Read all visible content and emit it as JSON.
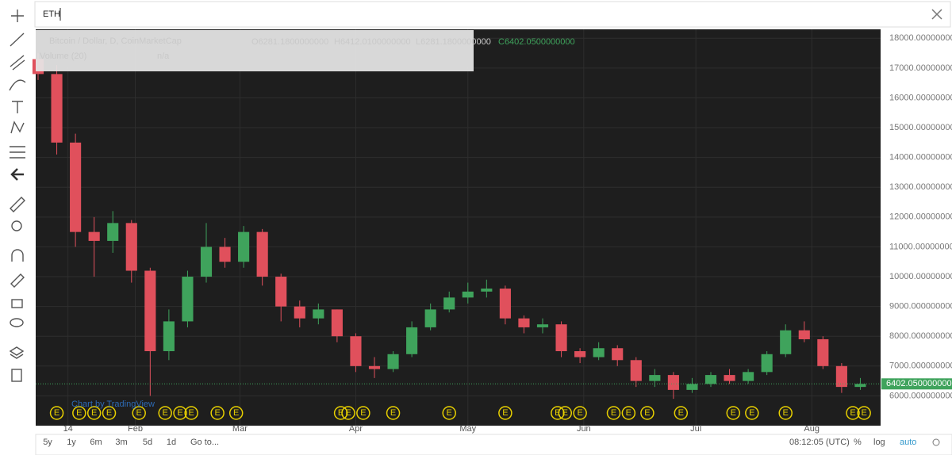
{
  "search": {
    "query": "ETH"
  },
  "header": {
    "symbol": "Bitcoin / Dollar, D, CoinMarketCap",
    "open": "O6281.1800000000",
    "high": "H6412.0100000000",
    "low": "L6281.1800000000",
    "close": "C6402.0500000000",
    "volume": "Volume (20)",
    "volume_value": "n/a"
  },
  "watermark": "Chart by TradingView",
  "earnings_marker": "E",
  "chart_data": {
    "type": "candlestick",
    "x": [
      0,
      5,
      10,
      15,
      20,
      25,
      30,
      35,
      40,
      45,
      50,
      55,
      60,
      65,
      70,
      75,
      80,
      85,
      90,
      95,
      100,
      105,
      110,
      115,
      120,
      125,
      130,
      135,
      140,
      145,
      150,
      155,
      160,
      165,
      170,
      175,
      180,
      185,
      190,
      195,
      200,
      205,
      210,
      215,
      220
    ],
    "open": [
      17300,
      16800,
      14500,
      11500,
      11200,
      11800,
      10200,
      7500,
      8500,
      10000,
      11000,
      10500,
      11500,
      10000,
      9000,
      8600,
      8900,
      8000,
      7000,
      6900,
      7400,
      8300,
      8900,
      9300,
      9500,
      9600,
      8600,
      8300,
      8400,
      7500,
      7300,
      7600,
      7200,
      6500,
      6700,
      6200,
      6400,
      6700,
      6500,
      6800,
      7400,
      8200,
      7900,
      7000,
      6300
    ],
    "high": [
      17500,
      17100,
      14800,
      12000,
      12200,
      11900,
      10300,
      8900,
      10200,
      11800,
      11300,
      11700,
      11600,
      10100,
      9200,
      9100,
      8900,
      8100,
      7300,
      7500,
      8500,
      9100,
      9500,
      9800,
      9900,
      9700,
      8700,
      8600,
      8500,
      7600,
      7800,
      7700,
      7300,
      6900,
      6800,
      6600,
      6800,
      6900,
      6900,
      7500,
      8400,
      8500,
      8000,
      7100,
      6600
    ],
    "low": [
      16600,
      14100,
      11000,
      10000,
      10800,
      9800,
      6000,
      7200,
      8300,
      9800,
      10300,
      10300,
      9700,
      8500,
      8300,
      8400,
      7800,
      6800,
      6600,
      6800,
      7300,
      8200,
      8800,
      9100,
      9300,
      8400,
      8100,
      8100,
      7300,
      7100,
      7200,
      7000,
      6300,
      6300,
      5900,
      6100,
      6300,
      6400,
      6400,
      6700,
      7300,
      7800,
      6900,
      6100,
      6200
    ],
    "close": [
      16800,
      14500,
      11500,
      11200,
      11800,
      10200,
      7500,
      8500,
      10000,
      11000,
      10500,
      11500,
      10000,
      9000,
      8600,
      8900,
      8000,
      7000,
      6900,
      7400,
      8300,
      8900,
      9300,
      9500,
      9600,
      8600,
      8300,
      8400,
      7500,
      7300,
      7600,
      7200,
      6500,
      6700,
      6200,
      6400,
      6700,
      6500,
      6800,
      7400,
      8200,
      7900,
      7000,
      6300,
      6400
    ],
    "xlim": [
      0,
      225
    ],
    "xticks": [
      {
        "value": 8,
        "label": "14"
      },
      {
        "value": 26,
        "label": "Feb"
      },
      {
        "value": 54,
        "label": "Mar"
      },
      {
        "value": 85,
        "label": "Apr"
      },
      {
        "value": 115,
        "label": "May"
      },
      {
        "value": 146,
        "label": "Jun"
      },
      {
        "value": 176,
        "label": "Jul"
      },
      {
        "value": 207,
        "label": "Aug"
      }
    ],
    "ylim": [
      5000,
      18300
    ],
    "yticks": [
      {
        "value": 6000,
        "label": "6000.0000000000"
      },
      {
        "value": 7000,
        "label": "7000.0000000000"
      },
      {
        "value": 8000,
        "label": "8000.0000000000"
      },
      {
        "value": 9000,
        "label": "9000.0000000000"
      },
      {
        "value": 10000,
        "label": "10000.0000000000"
      },
      {
        "value": 11000,
        "label": "11000.0000000000"
      },
      {
        "value": 12000,
        "label": "12000.0000000000"
      },
      {
        "value": 13000,
        "label": "13000.0000000000"
      },
      {
        "value": 14000,
        "label": "14000.0000000000"
      },
      {
        "value": 15000,
        "label": "15000.0000000000"
      },
      {
        "value": 16000,
        "label": "16000.0000000000"
      },
      {
        "value": 17000,
        "label": "17000.0000000000"
      },
      {
        "value": 18000,
        "label": "18000.0000000000"
      }
    ],
    "last_price": {
      "value": 6402.05,
      "label": "6402.0500000000"
    },
    "grid": true,
    "up_color": "#3fa35c",
    "down_color": "#e0505c"
  },
  "toolbar": {
    "ranges": [
      "5y",
      "1y",
      "6m",
      "3m",
      "5d",
      "1d"
    ],
    "goto": "Go to...",
    "clock": "08:12:05 (UTC)",
    "percent": "%",
    "log": "log",
    "auto": "auto"
  }
}
